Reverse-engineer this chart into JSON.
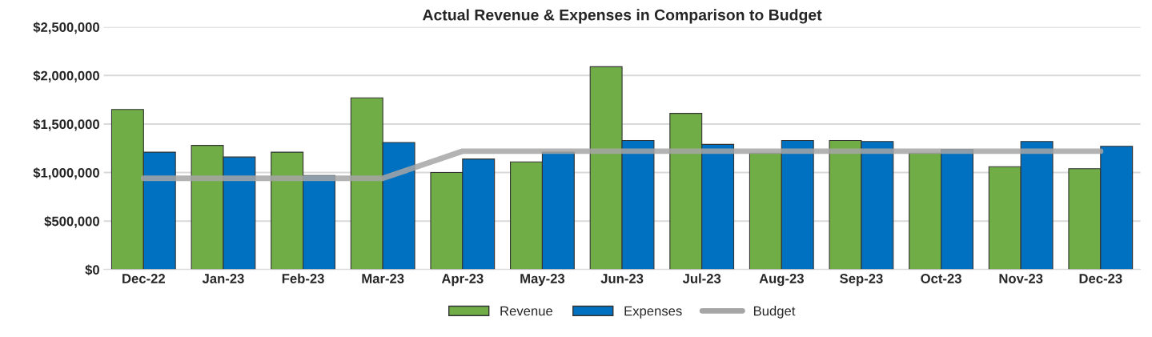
{
  "chart_data": {
    "type": "bar",
    "title": "Actual Revenue & Expenses in Comparison to Budget",
    "categories": [
      "Dec-22",
      "Jan-23",
      "Feb-23",
      "Mar-23",
      "Apr-23",
      "May-23",
      "Jun-23",
      "Jul-23",
      "Aug-23",
      "Sep-23",
      "Oct-23",
      "Nov-23",
      "Dec-23"
    ],
    "series": [
      {
        "name": "Revenue",
        "color": "#70ad47",
        "values": [
          1650000,
          1280000,
          1210000,
          1770000,
          1000000,
          1110000,
          2090000,
          1610000,
          1200000,
          1330000,
          1200000,
          1060000,
          1040000
        ]
      },
      {
        "name": "Expenses",
        "color": "#0070c0",
        "values": [
          1210000,
          1160000,
          970000,
          1310000,
          1140000,
          1210000,
          1330000,
          1290000,
          1330000,
          1320000,
          1240000,
          1320000,
          1270000
        ]
      },
      {
        "name": "Budget",
        "type": "line",
        "color": "#a6a6a6",
        "line_style": "solid",
        "values": [
          940000,
          940000,
          940000,
          940000,
          1220000,
          1220000,
          1220000,
          1220000,
          1220000,
          1220000,
          1220000,
          1220000,
          1220000
        ]
      }
    ],
    "ylim": [
      0,
      2500000
    ],
    "yticks": [
      {
        "value": 0,
        "label": "$0"
      },
      {
        "value": 500000,
        "label": "$500,000"
      },
      {
        "value": 1000000,
        "label": "$1,000,000"
      },
      {
        "value": 1500000,
        "label": "$1,500,000"
      },
      {
        "value": 2000000,
        "label": "$2,000,000"
      },
      {
        "value": 2500000,
        "label": "$2,500,000"
      }
    ],
    "grid": "y",
    "legend": "bottom"
  }
}
